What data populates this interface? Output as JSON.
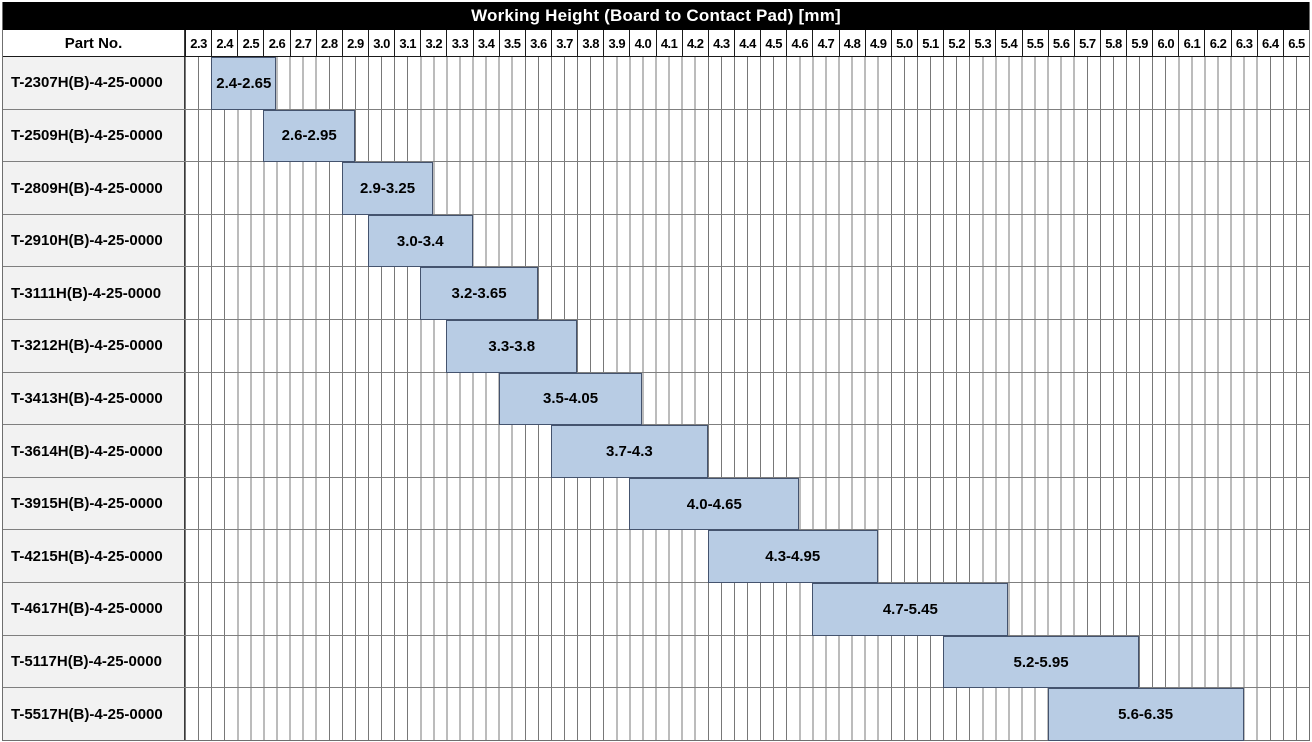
{
  "title": "Working Height (Board to Contact Pad) [mm]",
  "header": {
    "part_no_label": "Part No.",
    "ticks": [
      "2.3",
      "2.4",
      "2.5",
      "2.6",
      "2.7",
      "2.8",
      "2.9",
      "3.0",
      "3.1",
      "3.2",
      "3.3",
      "3.4",
      "3.5",
      "3.6",
      "3.7",
      "3.8",
      "3.9",
      "4.0",
      "4.1",
      "4.2",
      "4.3",
      "4.4",
      "4.5",
      "4.6",
      "4.7",
      "4.8",
      "4.9",
      "5.0",
      "5.1",
      "5.2",
      "5.3",
      "5.4",
      "5.5",
      "5.6",
      "5.7",
      "5.8",
      "5.9",
      "6.0",
      "6.1",
      "6.2",
      "6.3",
      "6.4",
      "6.5"
    ]
  },
  "chart_data": {
    "type": "bar",
    "subtype": "horizontal-range",
    "title": "Working Height (Board to Contact Pad) [mm]",
    "x_min": 2.3,
    "x_max_edge": 6.6,
    "tick_step": 0.1,
    "grid": "on",
    "minor_grid_step": 0.05,
    "rows": [
      {
        "part": "T-2307H(B)-4-25-0000",
        "start": 2.4,
        "end": 2.65,
        "label": "2.4-2.65"
      },
      {
        "part": "T-2509H(B)-4-25-0000",
        "start": 2.6,
        "end": 2.95,
        "label": "2.6-2.95"
      },
      {
        "part": "T-2809H(B)-4-25-0000",
        "start": 2.9,
        "end": 3.25,
        "label": "2.9-3.25"
      },
      {
        "part": "T-2910H(B)-4-25-0000",
        "start": 3.0,
        "end": 3.4,
        "label": "3.0-3.4"
      },
      {
        "part": "T-3111H(B)-4-25-0000",
        "start": 3.2,
        "end": 3.65,
        "label": "3.2-3.65"
      },
      {
        "part": "T-3212H(B)-4-25-0000",
        "start": 3.3,
        "end": 3.8,
        "label": "3.3-3.8"
      },
      {
        "part": "T-3413H(B)-4-25-0000",
        "start": 3.5,
        "end": 4.05,
        "label": "3.5-4.05"
      },
      {
        "part": "T-3614H(B)-4-25-0000",
        "start": 3.7,
        "end": 4.3,
        "label": "3.7-4.3"
      },
      {
        "part": "T-3915H(B)-4-25-0000",
        "start": 4.0,
        "end": 4.65,
        "label": "4.0-4.65"
      },
      {
        "part": "T-4215H(B)-4-25-0000",
        "start": 4.3,
        "end": 4.95,
        "label": "4.3-4.95"
      },
      {
        "part": "T-4617H(B)-4-25-0000",
        "start": 4.7,
        "end": 5.45,
        "label": "4.7-5.45"
      },
      {
        "part": "T-5117H(B)-4-25-0000",
        "start": 5.2,
        "end": 5.95,
        "label": "5.2-5.95"
      },
      {
        "part": "T-5517H(B)-4-25-0000",
        "start": 5.6,
        "end": 6.35,
        "label": "5.6-6.35"
      }
    ]
  },
  "colors": {
    "bar_fill": "#b8cce4",
    "bar_border": "#44536e",
    "title_bg": "#000000",
    "title_fg": "#ffffff",
    "row_label_bg": "#f2f2f2",
    "grid_line": "#787878",
    "row_line": "#7f7f7f",
    "header_border": "#1a1a1a"
  }
}
